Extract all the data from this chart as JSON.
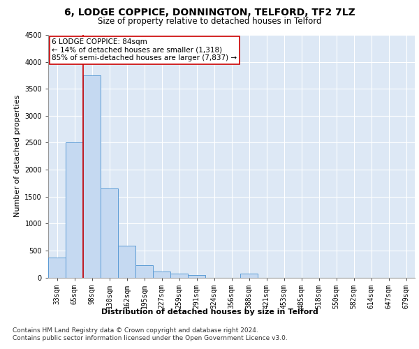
{
  "title1": "6, LODGE COPPICE, DONNINGTON, TELFORD, TF2 7LZ",
  "title2": "Size of property relative to detached houses in Telford",
  "xlabel": "Distribution of detached houses by size in Telford",
  "ylabel": "Number of detached properties",
  "categories": [
    "33sqm",
    "65sqm",
    "98sqm",
    "130sqm",
    "162sqm",
    "195sqm",
    "227sqm",
    "259sqm",
    "291sqm",
    "324sqm",
    "356sqm",
    "388sqm",
    "421sqm",
    "453sqm",
    "485sqm",
    "518sqm",
    "550sqm",
    "582sqm",
    "614sqm",
    "647sqm",
    "679sqm"
  ],
  "values": [
    370,
    2500,
    3750,
    1650,
    590,
    230,
    110,
    65,
    45,
    0,
    0,
    75,
    0,
    0,
    0,
    0,
    0,
    0,
    0,
    0,
    0
  ],
  "bar_color": "#c5d9f1",
  "bar_edge_color": "#5b9bd5",
  "annotation_line1": "6 LODGE COPPICE: 84sqm",
  "annotation_line2": "← 14% of detached houses are smaller (1,318)",
  "annotation_line3": "85% of semi-detached houses are larger (7,837) →",
  "vline_x_index": 1.5,
  "vline_color": "#cc0000",
  "annotation_box_color": "#ffffff",
  "annotation_box_edge": "#cc0000",
  "ylim": [
    0,
    4500
  ],
  "yticks": [
    0,
    500,
    1000,
    1500,
    2000,
    2500,
    3000,
    3500,
    4000,
    4500
  ],
  "grid_color": "#cccccc",
  "bg_color": "#dde8f5",
  "footnote1": "Contains HM Land Registry data © Crown copyright and database right 2024.",
  "footnote2": "Contains public sector information licensed under the Open Government Licence v3.0.",
  "title1_fontsize": 10,
  "title2_fontsize": 8.5,
  "xlabel_fontsize": 8,
  "ylabel_fontsize": 8,
  "tick_fontsize": 7,
  "annotation_fontsize": 7.5,
  "footnote_fontsize": 6.5
}
